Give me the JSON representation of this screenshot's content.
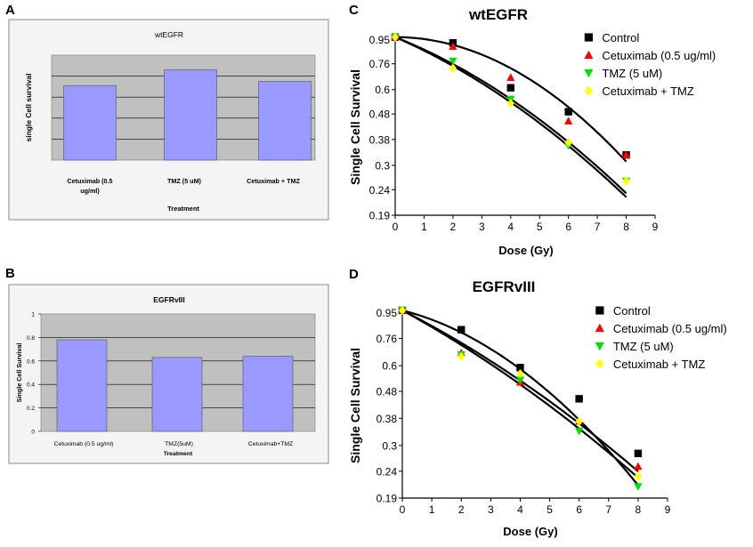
{
  "colors": {
    "bar_fill": "#9999ff",
    "plot_bg": "#c0c0c0",
    "panel_bg": "#f4f4f4",
    "control": "#000000",
    "cetuximab": "#ff0000",
    "tmz": "#00e000",
    "combo": "#ffff00"
  },
  "chart_data": [
    {
      "id": "A",
      "type": "bar",
      "panel_label": "A",
      "title": "wtEGFR",
      "xlabel": "Treatment",
      "ylabel": "single Cell survival",
      "ylim": [
        0,
        1
      ],
      "ytick_labels": [],
      "categories": [
        "Cetuximab (0.5 ug/ml)",
        "TMZ (5 uM)",
        "Cetuximab + TMZ"
      ],
      "values": [
        0.71,
        0.86,
        0.75
      ],
      "grid": true
    },
    {
      "id": "B",
      "type": "bar",
      "panel_label": "B",
      "title": "EGFRvIII",
      "xlabel": "Treatment",
      "ylabel": "Single Cell Survival",
      "ylim": [
        0,
        1
      ],
      "yticks": [
        0,
        0.2,
        0.4,
        0.6,
        0.8,
        1
      ],
      "ytick_labels": [
        "0",
        "0.2",
        "0.4",
        "0.6",
        "0.8",
        "1"
      ],
      "categories": [
        "Cetuximab (0.5 ug/ml)",
        "TMZ(5uM)",
        "Cetuximab+TMZ"
      ],
      "values": [
        0.78,
        0.63,
        0.64
      ],
      "grid": true
    },
    {
      "id": "C",
      "type": "scatter",
      "panel_label": "C",
      "title": "wtEGFR",
      "xlabel": "Dose (Gy)",
      "ylabel": "Single Cell Survival",
      "yscale": "log",
      "xlim": [
        0,
        9
      ],
      "ylim": [
        0.19,
        1.0
      ],
      "xticks": [
        0,
        1,
        2,
        3,
        4,
        5,
        6,
        7,
        8,
        9
      ],
      "yticks": [
        0.19,
        0.24,
        0.3,
        0.38,
        0.48,
        0.6,
        0.76,
        0.95
      ],
      "ytick_labels": [
        "0.19",
        "0.24",
        "0.3",
        "0.38",
        "0.48",
        "0.6",
        "0.76",
        "0.95"
      ],
      "legend_position": "top-right",
      "series": [
        {
          "name": "Control",
          "marker": "square",
          "color": "#000000",
          "x": [
            0,
            2,
            4,
            6,
            8
          ],
          "y": [
            0.97,
            0.92,
            0.61,
            0.49,
            0.33
          ]
        },
        {
          "name": "Cetuximab (0.5 ug/ml)",
          "marker": "triangle-up",
          "color": "#ff0000",
          "x": [
            0,
            2,
            4,
            6,
            8
          ],
          "y": [
            0.97,
            0.89,
            0.67,
            0.45,
            0.33
          ]
        },
        {
          "name": "TMZ (5 uM)",
          "marker": "triangle-down",
          "color": "#00e000",
          "x": [
            0,
            2,
            4,
            6,
            8
          ],
          "y": [
            0.97,
            0.78,
            0.55,
            0.36,
            0.26
          ]
        },
        {
          "name": "Cetuximab + TMZ",
          "marker": "diamond",
          "color": "#ffff00",
          "x": [
            0,
            2,
            4,
            6,
            8
          ],
          "y": [
            0.97,
            0.73,
            0.53,
            0.37,
            0.26
          ]
        }
      ],
      "fit_curves": [
        {
          "alpha": 0.0,
          "beta": 0.0178
        },
        {
          "alpha": 0.105,
          "beta": 0.0092
        },
        {
          "alpha": 0.115,
          "beta": 0.0085
        }
      ]
    },
    {
      "id": "D",
      "type": "scatter",
      "panel_label": "D",
      "title": "EGFRvIII",
      "xlabel": "Dose (Gy)",
      "ylabel": "Single Cell Survival",
      "yscale": "log",
      "xlim": [
        0,
        9
      ],
      "ylim": [
        0.19,
        1.0
      ],
      "xticks": [
        0,
        1,
        2,
        3,
        4,
        5,
        6,
        7,
        8,
        9
      ],
      "yticks": [
        0.19,
        0.24,
        0.3,
        0.38,
        0.48,
        0.6,
        0.76,
        0.95
      ],
      "ytick_labels": [
        "0.19",
        "0.24",
        "0.3",
        "0.38",
        "0.48",
        "0.6",
        "0.76",
        "0.95"
      ],
      "legend_position": "top-right",
      "series": [
        {
          "name": "Control",
          "marker": "square",
          "color": "#000000",
          "x": [
            0,
            2,
            4,
            6,
            8
          ],
          "y": [
            0.97,
            0.82,
            0.59,
            0.45,
            0.28
          ]
        },
        {
          "name": "Cetuximab (0.5 ug/ml)",
          "marker": "triangle-up",
          "color": "#ff0000",
          "x": [
            0,
            2,
            4,
            6,
            8
          ],
          "y": [
            0.97,
            0.67,
            0.52,
            0.37,
            0.25
          ]
        },
        {
          "name": "TMZ (5 uM)",
          "marker": "triangle-down",
          "color": "#00e000",
          "x": [
            0,
            2,
            4,
            6,
            8
          ],
          "y": [
            0.97,
            0.66,
            0.53,
            0.34,
            0.21
          ]
        },
        {
          "name": "Cetuximab + TMZ",
          "marker": "diamond",
          "color": "#ffff00",
          "x": [
            0,
            2,
            4,
            6,
            8
          ],
          "y": [
            0.97,
            0.65,
            0.56,
            0.37,
            0.23
          ]
        }
      ],
      "fit_curves": [
        {
          "alpha": 0.065,
          "beta": 0.0156
        },
        {
          "alpha": 0.13,
          "beta": 0.0056
        },
        {
          "alpha": 0.14,
          "beta": 0.0052
        }
      ]
    }
  ]
}
